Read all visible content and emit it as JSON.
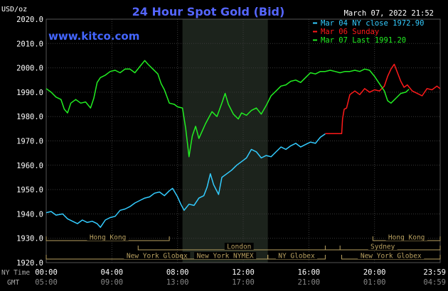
{
  "header": {
    "title": "24 Hour Spot Gold (Bid)",
    "unit": "USD/oz",
    "date": "March 07, 2022 21:52",
    "site": "www.kitco.com"
  },
  "legend": [
    {
      "label": "Mar 04 NY close 1972.90",
      "color": "#33ccff"
    },
    {
      "label": "Mar 06 Sunday",
      "color": "#ff1a1a"
    },
    {
      "label": "Mar 07 Last 1991.20",
      "color": "#22ee22"
    }
  ],
  "footer": {
    "ny_time_label": "NY Time",
    "gmt_label": "GMT",
    "ny_ticks": [
      "00:00",
      "04:00",
      "08:00",
      "12:00",
      "16:00",
      "20:00",
      "23:59"
    ],
    "gmt_ticks": [
      "05:00",
      "09:00",
      "13:00",
      "17:00",
      "21:00",
      "01:00",
      "04:59"
    ]
  },
  "sessions": [
    {
      "label": "Hong Kong",
      "start": 0,
      "end": 7.5,
      "row": 0
    },
    {
      "label": "London",
      "start": 5.6,
      "end": 17.9,
      "row": 1
    },
    {
      "label": "New York Globex",
      "start": 0,
      "end": 13.5,
      "row": 2
    },
    {
      "label": "New York NYMEX",
      "start": 8.3,
      "end": 13.5,
      "row": 2
    },
    {
      "label": "NY Globex",
      "start": 13.5,
      "end": 17.0,
      "row": 2
    },
    {
      "label": "Hong Kong",
      "start": 19.9,
      "end": 24,
      "row": 0
    },
    {
      "label": "Sydney",
      "start": 17.0,
      "end": 24,
      "row": 1
    },
    {
      "label": "New York Globex",
      "start": 18.0,
      "end": 24,
      "row": 2
    }
  ],
  "chart_data": {
    "type": "line",
    "title": "24 Hour Spot Gold (Bid)",
    "ylabel": "USD/oz",
    "xlabel": "NY Time",
    "xlim": [
      0,
      24
    ],
    "ylim": [
      1920,
      2020
    ],
    "yticks": [
      1920,
      1930,
      1940,
      1950,
      1960,
      1970,
      1980,
      1990,
      2000,
      2010,
      2020
    ],
    "xticks": [
      0,
      4,
      8,
      12,
      16,
      20,
      24
    ],
    "highlight_range": [
      8.3,
      13.5
    ],
    "grid": true,
    "legend_position": "top-right",
    "series": [
      {
        "name": "Mar 04 NY close 1972.90",
        "color": "#33ccff",
        "points": [
          [
            0.0,
            1940.5
          ],
          [
            0.3,
            1941.0
          ],
          [
            0.6,
            1939.5
          ],
          [
            1.0,
            1940.0
          ],
          [
            1.3,
            1938.0
          ],
          [
            1.6,
            1937.0
          ],
          [
            1.9,
            1936.0
          ],
          [
            2.2,
            1937.5
          ],
          [
            2.5,
            1936.5
          ],
          [
            2.8,
            1937.0
          ],
          [
            3.1,
            1936.0
          ],
          [
            3.3,
            1934.5
          ],
          [
            3.6,
            1937.5
          ],
          [
            3.9,
            1938.5
          ],
          [
            4.2,
            1939.0
          ],
          [
            4.5,
            1941.5
          ],
          [
            4.8,
            1942.0
          ],
          [
            5.1,
            1943.0
          ],
          [
            5.4,
            1944.5
          ],
          [
            5.7,
            1945.5
          ],
          [
            6.0,
            1946.5
          ],
          [
            6.3,
            1947.0
          ],
          [
            6.6,
            1948.5
          ],
          [
            6.9,
            1949.0
          ],
          [
            7.2,
            1947.5
          ],
          [
            7.5,
            1949.5
          ],
          [
            7.7,
            1950.5
          ],
          [
            8.0,
            1947.0
          ],
          [
            8.2,
            1944.0
          ],
          [
            8.4,
            1941.5
          ],
          [
            8.7,
            1944.0
          ],
          [
            9.0,
            1943.5
          ],
          [
            9.3,
            1946.5
          ],
          [
            9.6,
            1947.5
          ],
          [
            9.8,
            1951.0
          ],
          [
            10.0,
            1956.5
          ],
          [
            10.2,
            1952.0
          ],
          [
            10.5,
            1948.0
          ],
          [
            10.7,
            1955.0
          ],
          [
            11.0,
            1956.5
          ],
          [
            11.3,
            1958.0
          ],
          [
            11.6,
            1960.0
          ],
          [
            11.9,
            1961.5
          ],
          [
            12.2,
            1963.0
          ],
          [
            12.5,
            1966.5
          ],
          [
            12.8,
            1965.5
          ],
          [
            13.1,
            1963.0
          ],
          [
            13.4,
            1964.0
          ],
          [
            13.7,
            1963.5
          ],
          [
            14.0,
            1965.5
          ],
          [
            14.3,
            1967.5
          ],
          [
            14.6,
            1966.5
          ],
          [
            14.9,
            1968.0
          ],
          [
            15.2,
            1969.0
          ],
          [
            15.5,
            1967.5
          ],
          [
            15.8,
            1968.5
          ],
          [
            16.1,
            1969.5
          ],
          [
            16.4,
            1969.0
          ],
          [
            16.7,
            1971.5
          ],
          [
            17.0,
            1972.9
          ]
        ]
      },
      {
        "name": "Mar 06 Sunday",
        "color": "#ff1a1a",
        "points": [
          [
            17.0,
            1973.0
          ],
          [
            17.5,
            1973.0
          ],
          [
            18.0,
            1973.0
          ],
          [
            18.05,
            1979.0
          ],
          [
            18.15,
            1983.0
          ],
          [
            18.3,
            1983.5
          ],
          [
            18.5,
            1989.0
          ],
          [
            18.8,
            1990.5
          ],
          [
            19.1,
            1989.0
          ],
          [
            19.4,
            1991.5
          ],
          [
            19.7,
            1990.0
          ],
          [
            20.0,
            1991.0
          ],
          [
            20.3,
            1990.5
          ],
          [
            20.6,
            1992.5
          ],
          [
            20.8,
            1996.5
          ],
          [
            21.0,
            1999.5
          ],
          [
            21.2,
            2001.5
          ],
          [
            21.4,
            1998.0
          ],
          [
            21.6,
            1994.5
          ],
          [
            21.8,
            1992.0
          ],
          [
            22.0,
            1993.0
          ],
          [
            22.3,
            1990.5
          ],
          [
            22.6,
            1989.5
          ],
          [
            22.9,
            1988.5
          ],
          [
            23.2,
            1991.5
          ],
          [
            23.5,
            1991.0
          ],
          [
            23.8,
            1992.5
          ],
          [
            23.99,
            1991.5
          ]
        ]
      },
      {
        "name": "Mar 07 Last 1991.20",
        "color": "#22ee22",
        "points": [
          [
            0.0,
            1991.5
          ],
          [
            0.3,
            1990.0
          ],
          [
            0.6,
            1988.0
          ],
          [
            0.9,
            1987.0
          ],
          [
            1.1,
            1983.0
          ],
          [
            1.3,
            1981.5
          ],
          [
            1.5,
            1985.5
          ],
          [
            1.8,
            1987.0
          ],
          [
            2.1,
            1985.5
          ],
          [
            2.4,
            1986.0
          ],
          [
            2.7,
            1983.5
          ],
          [
            2.9,
            1987.5
          ],
          [
            3.1,
            1994.0
          ],
          [
            3.3,
            1996.0
          ],
          [
            3.6,
            1997.0
          ],
          [
            3.9,
            1998.5
          ],
          [
            4.2,
            1999.0
          ],
          [
            4.5,
            1998.0
          ],
          [
            4.8,
            1999.5
          ],
          [
            5.1,
            1999.5
          ],
          [
            5.4,
            1998.0
          ],
          [
            5.7,
            2000.5
          ],
          [
            6.0,
            2003.0
          ],
          [
            6.2,
            2001.5
          ],
          [
            6.5,
            1999.5
          ],
          [
            6.8,
            1997.5
          ],
          [
            7.0,
            1993.5
          ],
          [
            7.2,
            1991.0
          ],
          [
            7.5,
            1985.5
          ],
          [
            7.8,
            1985.0
          ],
          [
            8.0,
            1984.0
          ],
          [
            8.3,
            1983.5
          ],
          [
            8.5,
            1975.0
          ],
          [
            8.7,
            1963.5
          ],
          [
            8.9,
            1972.0
          ],
          [
            9.1,
            1976.0
          ],
          [
            9.3,
            1971.0
          ],
          [
            9.5,
            1974.0
          ],
          [
            9.7,
            1977.0
          ],
          [
            9.9,
            1979.5
          ],
          [
            10.1,
            1982.0
          ],
          [
            10.4,
            1980.0
          ],
          [
            10.7,
            1985.5
          ],
          [
            10.9,
            1989.5
          ],
          [
            11.1,
            1985.0
          ],
          [
            11.4,
            1981.0
          ],
          [
            11.7,
            1979.0
          ],
          [
            11.9,
            1981.5
          ],
          [
            12.2,
            1980.5
          ],
          [
            12.5,
            1982.5
          ],
          [
            12.8,
            1983.5
          ],
          [
            13.1,
            1981.0
          ],
          [
            13.4,
            1984.5
          ],
          [
            13.7,
            1988.5
          ],
          [
            14.0,
            1990.5
          ],
          [
            14.3,
            1992.5
          ],
          [
            14.6,
            1993.0
          ],
          [
            14.9,
            1994.5
          ],
          [
            15.2,
            1995.0
          ],
          [
            15.5,
            1994.0
          ],
          [
            15.8,
            1996.0
          ],
          [
            16.1,
            1998.0
          ],
          [
            16.4,
            1997.5
          ],
          [
            16.7,
            1998.5
          ],
          [
            17.0,
            1998.5
          ],
          [
            17.3,
            1999.0
          ],
          [
            17.6,
            1998.5
          ],
          [
            17.9,
            1998.0
          ],
          [
            18.2,
            1998.5
          ],
          [
            18.5,
            1998.5
          ],
          [
            18.8,
            1999.0
          ],
          [
            19.1,
            1998.5
          ],
          [
            19.4,
            1999.5
          ],
          [
            19.7,
            1999.0
          ],
          [
            20.0,
            1996.5
          ],
          [
            20.3,
            1993.5
          ],
          [
            20.6,
            1990.5
          ],
          [
            20.8,
            1986.5
          ],
          [
            21.0,
            1985.5
          ],
          [
            21.3,
            1987.5
          ],
          [
            21.6,
            1989.5
          ],
          [
            21.9,
            1990.0
          ],
          [
            22.1,
            1991.2
          ]
        ]
      }
    ]
  }
}
